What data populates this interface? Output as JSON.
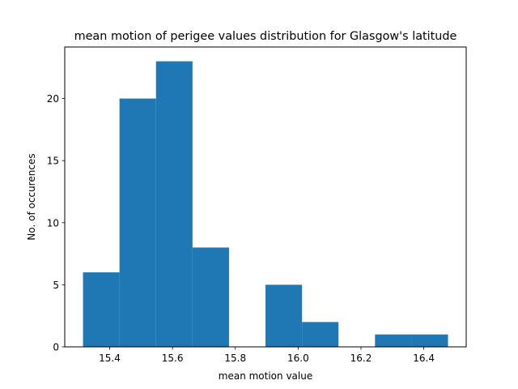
{
  "chart_data": {
    "type": "bar",
    "title": "mean motion of perigee values distribution for Glasgow's latitude",
    "xlabel": "mean motion value",
    "ylabel": "No. of occurences",
    "bin_edges": [
      15.3151,
      15.4313,
      15.5475,
      15.6637,
      15.7799,
      15.8961,
      16.0123,
      16.1285,
      16.2447,
      16.3609,
      16.4771
    ],
    "counts": [
      6,
      20,
      23,
      8,
      0,
      5,
      2,
      0,
      1,
      1
    ],
    "xlim": [
      15.257,
      16.535
    ],
    "ylim": [
      0,
      24.15
    ],
    "xticks": [
      15.4,
      15.6,
      15.8,
      16.0,
      16.2,
      16.4
    ],
    "xtick_labels": [
      "15.4",
      "15.6",
      "15.8",
      "16.0",
      "16.2",
      "16.4"
    ],
    "yticks": [
      0,
      5,
      10,
      15,
      20
    ],
    "ytick_labels": [
      "0",
      "5",
      "10",
      "15",
      "20"
    ],
    "bar_color": "#1f77b4",
    "grid": false,
    "legend": "none"
  }
}
